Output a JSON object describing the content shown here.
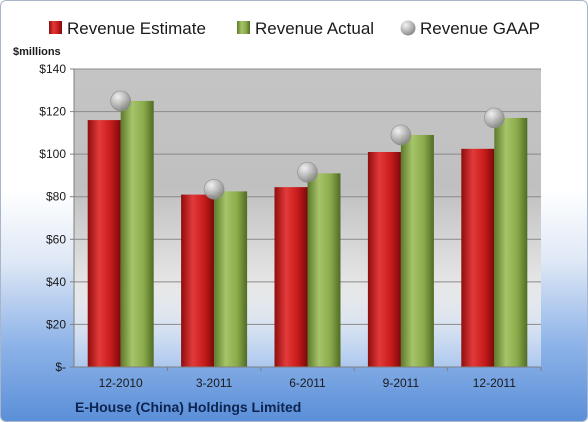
{
  "chart_data": {
    "type": "bar",
    "categories": [
      "12-2010",
      "3-2011",
      "6-2011",
      "9-2011",
      "12-2011"
    ],
    "series": [
      {
        "name": "Revenue Estimate",
        "kind": "bar",
        "color": "#cc1f1f",
        "values": [
          116,
          81,
          84.5,
          101,
          102.5
        ]
      },
      {
        "name": "Revenue Actual",
        "kind": "bar",
        "color": "#8aaa4a",
        "values": [
          125,
          82.5,
          91,
          109,
          117
        ]
      },
      {
        "name": "Revenue GAAP",
        "kind": "marker",
        "color": "#b8b8b8",
        "values": [
          125,
          83.5,
          91.5,
          109,
          117
        ]
      }
    ],
    "ylabel": "$millions",
    "ylim": [
      0,
      140
    ],
    "yticks": [
      0,
      20,
      40,
      60,
      80,
      100,
      120,
      140
    ],
    "ytick_labels": [
      "$-",
      "$20",
      "$40",
      "$60",
      "$80",
      "$100",
      "$120",
      "$140"
    ],
    "grid": true,
    "legend_position": "top"
  },
  "footer": {
    "company": "E-House (China) Holdings Limited"
  }
}
